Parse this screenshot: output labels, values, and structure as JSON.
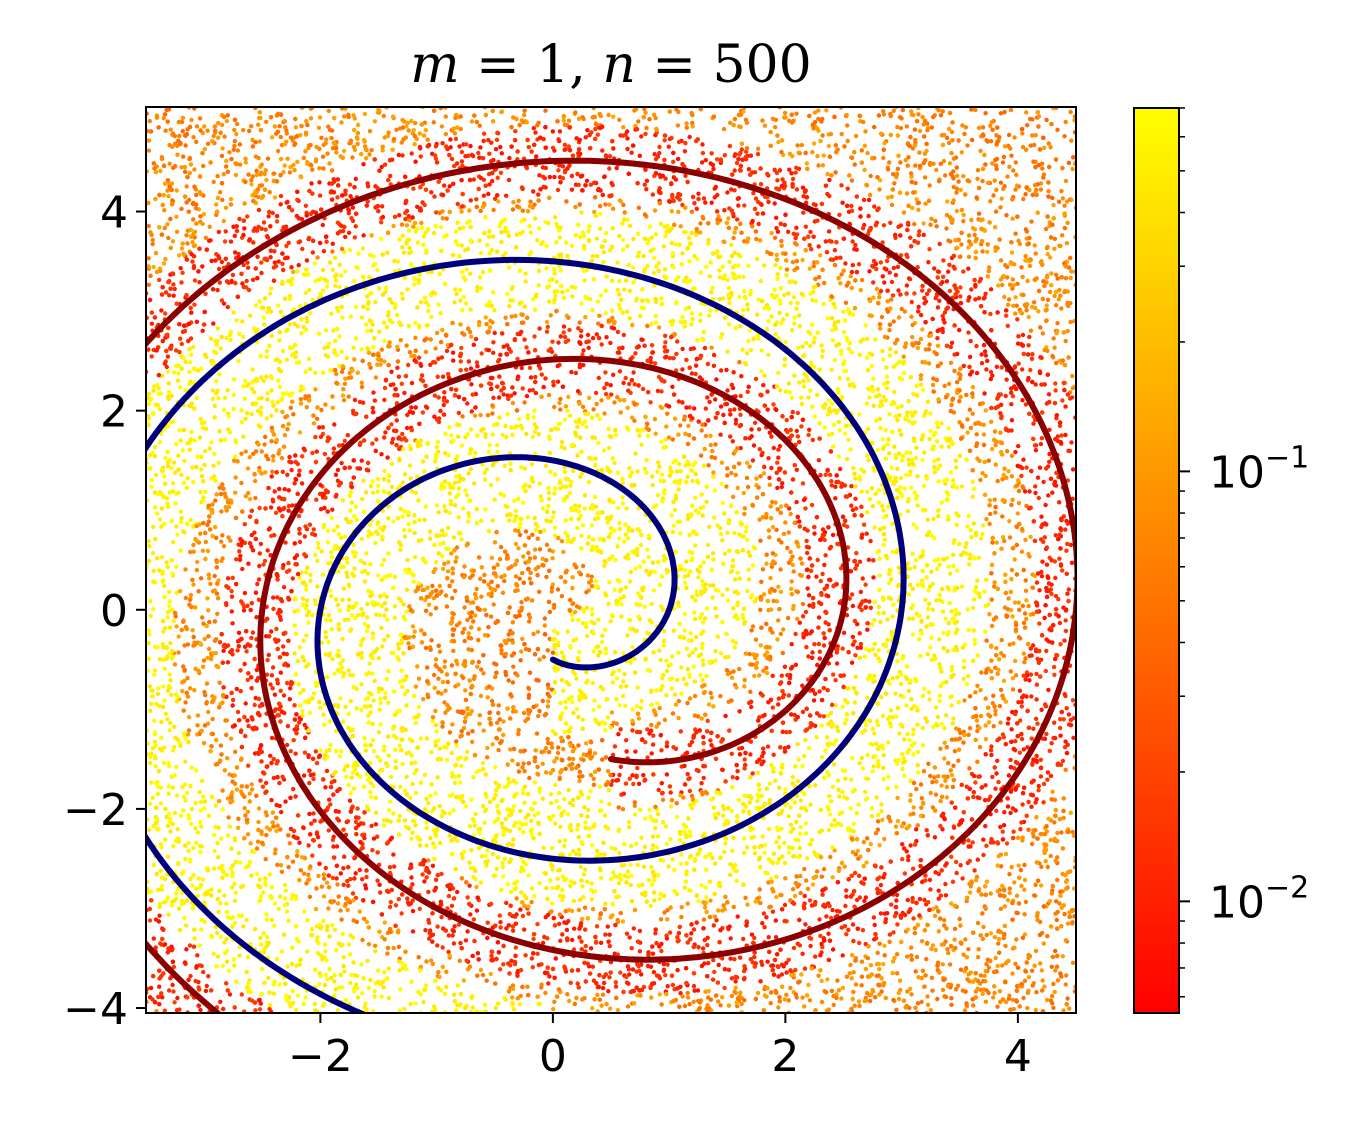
{
  "chart_data": {
    "type": "scatter",
    "title": "m = 1, n = 500",
    "title_parts": {
      "m_var": "m",
      "m_eq": " = 1, ",
      "n_var": "n",
      "n_eq": " = 500"
    },
    "xlabel": "",
    "ylabel": "",
    "xlim": [
      -3.5,
      4.5
    ],
    "ylim": [
      -4.05,
      5.05
    ],
    "x_ticks": [
      -2,
      0,
      2,
      4
    ],
    "x_tick_labels": [
      "−2",
      "0",
      "2",
      "4"
    ],
    "y_ticks": [
      -4,
      -2,
      0,
      2,
      4
    ],
    "y_tick_labels": [
      "−4",
      "−2",
      "0",
      "2",
      "4"
    ],
    "grid": false,
    "background_scatter": {
      "description_colormap": "autumn",
      "color_scale": "log",
      "count_approx": 20000
    },
    "curves": [
      {
        "color": "#8b0000",
        "kind": "spiral",
        "center": [
          0.5,
          0.0
        ],
        "r0": 1.5,
        "growth_per_turn": 2.0,
        "start_angle_deg": -90,
        "turns": 2.0,
        "points": [
          [
            0,
            -1.5
          ],
          [
            2.0,
            0.25
          ],
          [
            0,
            2.5
          ],
          [
            -3.0,
            -0.25
          ],
          [
            0.5,
            -3.5
          ],
          [
            4.0,
            0.2
          ],
          [
            0,
            4.5
          ]
        ]
      },
      {
        "color": "#00007a",
        "kind": "spiral",
        "center": [
          0.0,
          0.0
        ],
        "r0": 0.5,
        "growth_per_turn": 2.0,
        "start_angle_deg": -90,
        "turns": 2.0,
        "points": [
          [
            0,
            -0.5
          ],
          [
            1.05,
            0.25
          ],
          [
            0,
            1.5
          ],
          [
            -2.0,
            -0.25
          ],
          [
            0.5,
            -2.5
          ],
          [
            3.0,
            0.2
          ],
          [
            0,
            3.5
          ]
        ]
      }
    ],
    "colorbar": {
      "scale": "log",
      "range": [
        0.0055,
        0.7
      ],
      "colors": [
        "#ff0000",
        "#ffff00"
      ],
      "major_ticks": [
        {
          "value": 0.01,
          "base": "10",
          "exp": "−2"
        },
        {
          "value": 0.1,
          "base": "10",
          "exp": "−1"
        }
      ],
      "minor_ticks": [
        0.006,
        0.007,
        0.008,
        0.009,
        0.02,
        0.03,
        0.04,
        0.05,
        0.06,
        0.07,
        0.08,
        0.09,
        0.2,
        0.3,
        0.4,
        0.5,
        0.6,
        0.7
      ]
    }
  }
}
